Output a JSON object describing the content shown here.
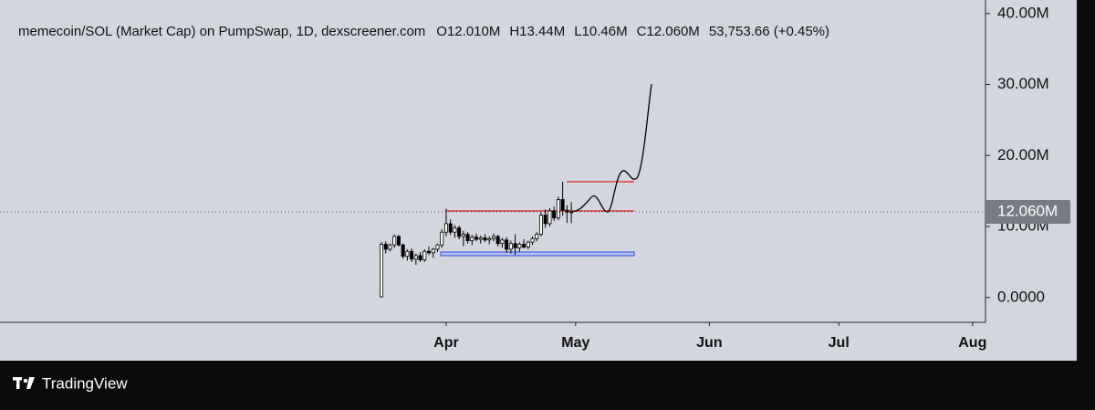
{
  "chart_data": {
    "type": "candlestick",
    "title": "memecoin/SOL (Market Cap) on PumpSwap, 1D, dexscreener.com",
    "legend_values": [
      "O12.010M",
      "H13.44M",
      "L10.46M",
      "C12.060M",
      "53,753.66 (+0.45%)"
    ],
    "x": [
      0,
      1,
      2,
      3,
      4,
      5,
      6,
      7,
      8,
      9,
      10,
      11,
      12,
      13,
      14,
      15,
      16,
      17,
      18,
      19,
      20,
      21,
      22,
      23,
      24,
      25,
      26,
      27,
      28,
      29,
      30,
      31,
      32,
      33,
      34,
      35,
      36,
      37,
      38,
      39,
      40,
      41,
      42,
      43,
      44
    ],
    "open": [
      0.1,
      7.5,
      6.8,
      7.4,
      8.6,
      7.4,
      5.8,
      6.5,
      5.4,
      5.9,
      5.3,
      6.5,
      6.3,
      6.8,
      7.4,
      9.2,
      10.4,
      9.2,
      9.8,
      8.6,
      8.9,
      8.0,
      8.5,
      8.2,
      8.4,
      8.1,
      8.3,
      8.6,
      7.6,
      8.1,
      6.8,
      7.6,
      7.0,
      7.5,
      7.1,
      7.8,
      8.3,
      8.9,
      11.6,
      10.4,
      12.2,
      11.2,
      13.8,
      12.3,
      12.01
    ],
    "high": [
      7.8,
      7.9,
      7.6,
      8.9,
      8.8,
      7.6,
      6.8,
      6.9,
      6.2,
      6.4,
      6.8,
      7.2,
      7.0,
      7.6,
      9.6,
      12.5,
      11.0,
      10.2,
      10.1,
      9.4,
      9.2,
      8.8,
      9.0,
      8.7,
      8.9,
      8.6,
      9.0,
      8.8,
      8.4,
      8.5,
      8.0,
      8.9,
      7.8,
      8.2,
      8.0,
      8.6,
      9.2,
      12.0,
      12.4,
      12.6,
      12.8,
      14.2,
      16.3,
      13.0,
      13.44
    ],
    "low": [
      0,
      6.2,
      6.5,
      7.0,
      7.2,
      5.5,
      5.2,
      5.0,
      4.6,
      5.0,
      5.0,
      6.0,
      5.6,
      6.4,
      7.0,
      8.6,
      8.8,
      8.4,
      8.2,
      7.2,
      7.6,
      7.4,
      7.9,
      7.6,
      7.8,
      7.5,
      7.9,
      7.2,
      7.0,
      6.3,
      6.2,
      6.0,
      6.4,
      6.9,
      6.8,
      7.4,
      7.9,
      8.6,
      9.8,
      10.0,
      10.8,
      10.9,
      11.5,
      10.5,
      10.46
    ],
    "close": [
      7.5,
      6.8,
      7.4,
      8.6,
      7.4,
      5.8,
      6.5,
      5.4,
      5.9,
      5.3,
      6.5,
      6.3,
      6.8,
      7.4,
      9.2,
      10.4,
      9.2,
      9.8,
      8.6,
      8.9,
      8.0,
      8.5,
      8.2,
      8.4,
      8.1,
      8.3,
      8.6,
      7.6,
      8.1,
      6.8,
      7.6,
      7.0,
      7.5,
      7.1,
      7.8,
      8.3,
      8.9,
      11.6,
      10.4,
      12.2,
      11.2,
      13.8,
      12.3,
      12.01,
      12.06
    ],
    "up_color": "#ffffff",
    "down_color": "#000000",
    "xlim": [
      -88.4,
      140
    ],
    "xticks": [
      {
        "value": 15,
        "label": "Apr"
      },
      {
        "value": 45,
        "label": "May"
      },
      {
        "value": 76,
        "label": "Jun"
      },
      {
        "value": 106,
        "label": "Jul"
      },
      {
        "value": 137,
        "label": "Aug"
      }
    ],
    "ylim": [
      -3.5,
      41.9
    ],
    "yticks": [
      {
        "value": 0,
        "label": "0.0000"
      },
      {
        "value": 10,
        "label": "10.00M"
      },
      {
        "value": 20,
        "label": "20.00M"
      },
      {
        "value": 30,
        "label": "30.00M"
      },
      {
        "value": 40,
        "label": "40.00M"
      }
    ],
    "last_price": {
      "value": 12.06,
      "label": "12.060M"
    },
    "brand": "TradingView"
  }
}
